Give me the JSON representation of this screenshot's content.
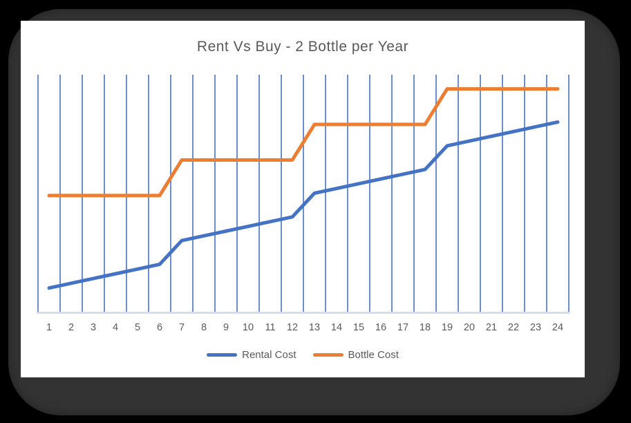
{
  "window": {
    "background_color": "#000000",
    "bezel_color": "#333333",
    "card_color": "#ffffff"
  },
  "chart_data": {
    "type": "line",
    "title": "Rent Vs Buy - 2 Bottle per Year",
    "categories": [
      1,
      2,
      3,
      4,
      5,
      6,
      7,
      8,
      9,
      10,
      11,
      12,
      13,
      14,
      15,
      16,
      17,
      18,
      19,
      20,
      21,
      22,
      23,
      24
    ],
    "series": [
      {
        "name": "Rental Cost",
        "color": "#4472C4",
        "values": [
          10,
          12,
          14,
          16,
          18,
          20,
          30,
          32,
          34,
          36,
          38,
          40,
          50,
          52,
          54,
          56,
          58,
          60,
          70,
          72,
          74,
          76,
          78,
          80
        ]
      },
      {
        "name": "Bottle Cost",
        "color": "#ED7D31",
        "values": [
          49,
          49,
          49,
          49,
          49,
          49,
          64,
          64,
          64,
          64,
          64,
          64,
          79,
          79,
          79,
          79,
          79,
          79,
          94,
          94,
          94,
          94,
          94,
          94
        ]
      }
    ],
    "xlabel": "",
    "ylabel": "",
    "ylim": [
      0,
      100
    ],
    "y_axis_visible": false,
    "gridlines": "vertical",
    "legend_position": "bottom",
    "style": {
      "gridline_color": "#4472C4",
      "gridline_width": 1.6,
      "axis_line_color": "#CDD7EA",
      "axis_line_width": 2.5,
      "series_stroke_width": 5,
      "text_color": "#595959",
      "tick_font_size": 14.5
    }
  }
}
